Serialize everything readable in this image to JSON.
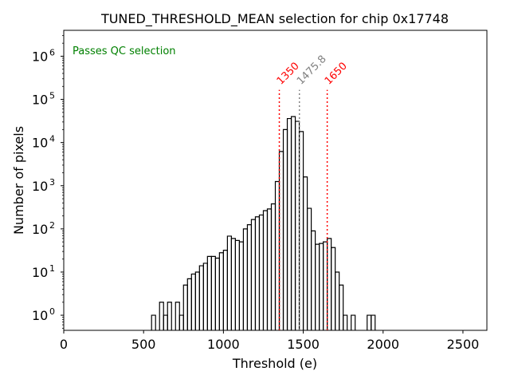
{
  "chart_data": {
    "type": "histogram",
    "title": "TUNED_THRESHOLD_MEAN selection for chip 0x17748",
    "xlabel": "Threshold (e)",
    "ylabel": "Number of pixels",
    "xlim": [
      0,
      2650
    ],
    "ylim_log10": [
      -0.35,
      6.6
    ],
    "x_ticks": [
      0,
      500,
      1000,
      1500,
      2000,
      2500
    ],
    "x_tick_labels": [
      "0",
      "500",
      "1000",
      "1500",
      "2000",
      "2500"
    ],
    "y_tick_exponents": [
      0,
      1,
      2,
      3,
      4,
      5,
      6
    ],
    "y_tick_labels": [
      "10",
      "10",
      "10",
      "10",
      "10",
      "10",
      "10"
    ],
    "y_tick_superscripts": [
      "0",
      "1",
      "2",
      "3",
      "4",
      "5",
      "6"
    ],
    "status_text": "Passes QC selection",
    "status_color": "#008000",
    "bin_width": 25,
    "bins": [
      {
        "x": 550,
        "v": 1
      },
      {
        "x": 575,
        "v": 0
      },
      {
        "x": 600,
        "v": 2
      },
      {
        "x": 625,
        "v": 1
      },
      {
        "x": 650,
        "v": 2
      },
      {
        "x": 675,
        "v": 0
      },
      {
        "x": 700,
        "v": 2
      },
      {
        "x": 725,
        "v": 1
      },
      {
        "x": 750,
        "v": 5
      },
      {
        "x": 775,
        "v": 7
      },
      {
        "x": 800,
        "v": 9
      },
      {
        "x": 825,
        "v": 10
      },
      {
        "x": 850,
        "v": 14
      },
      {
        "x": 875,
        "v": 16
      },
      {
        "x": 900,
        "v": 23
      },
      {
        "x": 925,
        "v": 23
      },
      {
        "x": 950,
        "v": 21
      },
      {
        "x": 975,
        "v": 28
      },
      {
        "x": 1000,
        "v": 32
      },
      {
        "x": 1025,
        "v": 68
      },
      {
        "x": 1050,
        "v": 60
      },
      {
        "x": 1075,
        "v": 54
      },
      {
        "x": 1100,
        "v": 50
      },
      {
        "x": 1125,
        "v": 100
      },
      {
        "x": 1150,
        "v": 125
      },
      {
        "x": 1175,
        "v": 165
      },
      {
        "x": 1200,
        "v": 190
      },
      {
        "x": 1225,
        "v": 210
      },
      {
        "x": 1250,
        "v": 265
      },
      {
        "x": 1275,
        "v": 290
      },
      {
        "x": 1300,
        "v": 380
      },
      {
        "x": 1325,
        "v": 1250
      },
      {
        "x": 1350,
        "v": 6200
      },
      {
        "x": 1375,
        "v": 20000
      },
      {
        "x": 1400,
        "v": 36000
      },
      {
        "x": 1425,
        "v": 40000
      },
      {
        "x": 1450,
        "v": 31000
      },
      {
        "x": 1475,
        "v": 18000
      },
      {
        "x": 1500,
        "v": 1600
      },
      {
        "x": 1525,
        "v": 300
      },
      {
        "x": 1550,
        "v": 90
      },
      {
        "x": 1575,
        "v": 44
      },
      {
        "x": 1600,
        "v": 46
      },
      {
        "x": 1625,
        "v": 50
      },
      {
        "x": 1650,
        "v": 60
      },
      {
        "x": 1675,
        "v": 37
      },
      {
        "x": 1700,
        "v": 10
      },
      {
        "x": 1725,
        "v": 5
      },
      {
        "x": 1750,
        "v": 1
      },
      {
        "x": 1775,
        "v": 0
      },
      {
        "x": 1800,
        "v": 1
      },
      {
        "x": 1825,
        "v": 0
      },
      {
        "x": 1850,
        "v": 0
      },
      {
        "x": 1875,
        "v": 0
      },
      {
        "x": 1900,
        "v": 1
      },
      {
        "x": 1925,
        "v": 1
      }
    ],
    "vlines": [
      {
        "x": 1350,
        "label": "1350",
        "color": "#ff0000"
      },
      {
        "x": 1475.8,
        "label": "1475.8",
        "color": "#808080"
      },
      {
        "x": 1650,
        "label": "1650",
        "color": "#ff0000"
      }
    ]
  }
}
